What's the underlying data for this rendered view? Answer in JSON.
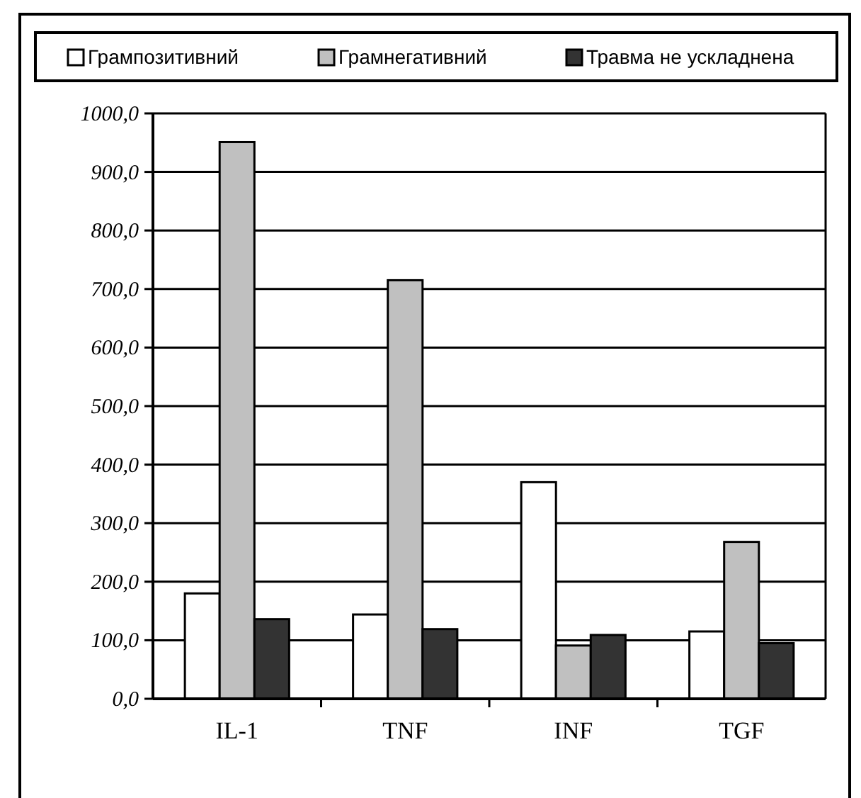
{
  "chart_data": {
    "type": "bar",
    "categories": [
      "IL-1",
      "TNF",
      "INF",
      "TGF"
    ],
    "series": [
      {
        "name": "Грампозитивний",
        "color": "#ffffff",
        "values": [
          180,
          144,
          370,
          115
        ]
      },
      {
        "name": "Грамнегативний",
        "color": "#c0c0c0",
        "values": [
          951,
          715,
          91,
          268
        ]
      },
      {
        "name": "Травма не ускладнена",
        "color": "#333333",
        "values": [
          136,
          119,
          109,
          95
        ]
      }
    ],
    "ylim": [
      0,
      1000
    ],
    "yticks": [
      {
        "value": 0,
        "label": "0,0"
      },
      {
        "value": 100,
        "label": "100,0"
      },
      {
        "value": 200,
        "label": "200,0"
      },
      {
        "value": 300,
        "label": "300,0"
      },
      {
        "value": 400,
        "label": "400,0"
      },
      {
        "value": 500,
        "label": "500,0"
      },
      {
        "value": 600,
        "label": "600,0"
      },
      {
        "value": 700,
        "label": "700,0"
      },
      {
        "value": 800,
        "label": "800,0"
      },
      {
        "value": 900,
        "label": "900,0"
      },
      {
        "value": 1000,
        "label": "1000,0"
      }
    ],
    "grid": "y",
    "legend": "top"
  }
}
